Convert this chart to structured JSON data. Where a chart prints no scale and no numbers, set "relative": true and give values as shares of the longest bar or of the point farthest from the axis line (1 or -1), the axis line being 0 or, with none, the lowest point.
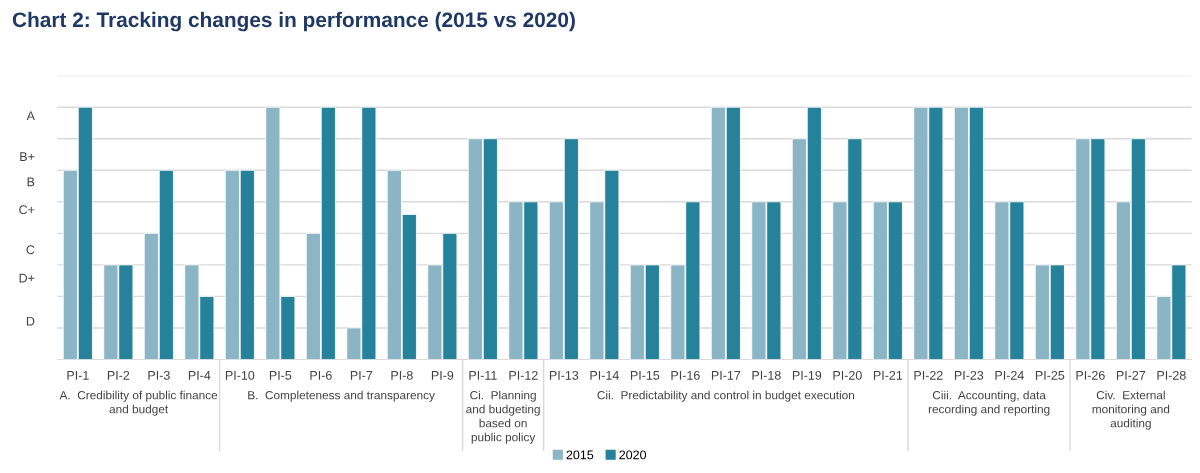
{
  "chart_data": {
    "type": "bar",
    "title": "Chart 2: Tracking changes in performance (2015 vs 2020)",
    "categories": [
      "PI-1",
      "PI-2",
      "PI-3",
      "PI-4",
      "PI-10",
      "PI-5",
      "PI-6",
      "PI-7",
      "PI-8",
      "PI-9",
      "PI-11",
      "PI-12",
      "PI-13",
      "PI-14",
      "PI-15",
      "PI-16",
      "PI-17",
      "PI-18",
      "PI-19",
      "PI-20",
      "PI-21",
      "PI-22",
      "PI-23",
      "PI-24",
      "PI-25",
      "PI-26",
      "PI-27",
      "PI-28"
    ],
    "relative": true,
    "series": [
      {
        "name": "2015",
        "color": "#8bb4c4",
        "values": [
          0.75,
          0.375,
          0.5,
          0.375,
          0.75,
          1,
          0.5,
          0.125,
          0.75,
          0.375,
          0.875,
          0.625,
          0.625,
          0.625,
          0.375,
          0.375,
          1,
          0.625,
          0.875,
          0.625,
          0.625,
          1,
          1,
          0.625,
          0.375,
          0.875,
          0.625,
          0.25
        ]
      },
      {
        "name": "2020",
        "color": "#26829a",
        "values": [
          1,
          0.375,
          0.75,
          0.25,
          0.75,
          0.25,
          1,
          1,
          0.575,
          0.5,
          0.875,
          0.625,
          0.875,
          0.75,
          0.375,
          0.625,
          1,
          0.625,
          1,
          0.875,
          0.625,
          1,
          1,
          0.625,
          0.375,
          0.875,
          0.875,
          0.375
        ]
      }
    ],
    "ref_lines": [
      {
        "axis": "y",
        "value": 0.125,
        "color": "#d9d9d9"
      },
      {
        "axis": "y",
        "value": 0.25,
        "color": "#d9d9d9"
      },
      {
        "axis": "y",
        "value": 0.375,
        "color": "#d9d9d9"
      },
      {
        "axis": "y",
        "value": 0.5,
        "color": "#d9d9d9"
      },
      {
        "axis": "y",
        "value": 0.625,
        "color": "#d9d9d9"
      },
      {
        "axis": "y",
        "value": 0.75,
        "color": "#d9d9d9"
      },
      {
        "axis": "y",
        "value": 0.875,
        "color": "#d9d9d9"
      },
      {
        "axis": "y",
        "value": 1,
        "color": "#d9d9d9"
      },
      {
        "axis": "y",
        "value": 1.125,
        "color": "#d9d9d9"
      }
    ],
    "legend": "bottom",
    "annotations": [
      "A",
      "B+",
      "B",
      "C+",
      "C",
      "D+",
      "D",
      "A.  Credibility of public finance and budget",
      "B.  Completeness and transparency",
      "Ci.  Planning and budgeting based on public policy",
      "Cii.  Predictability and control in budget execution",
      "Ciii.  Accounting, data recording and reporting",
      "Civ.  External monitoring and auditing"
    ]
  }
}
